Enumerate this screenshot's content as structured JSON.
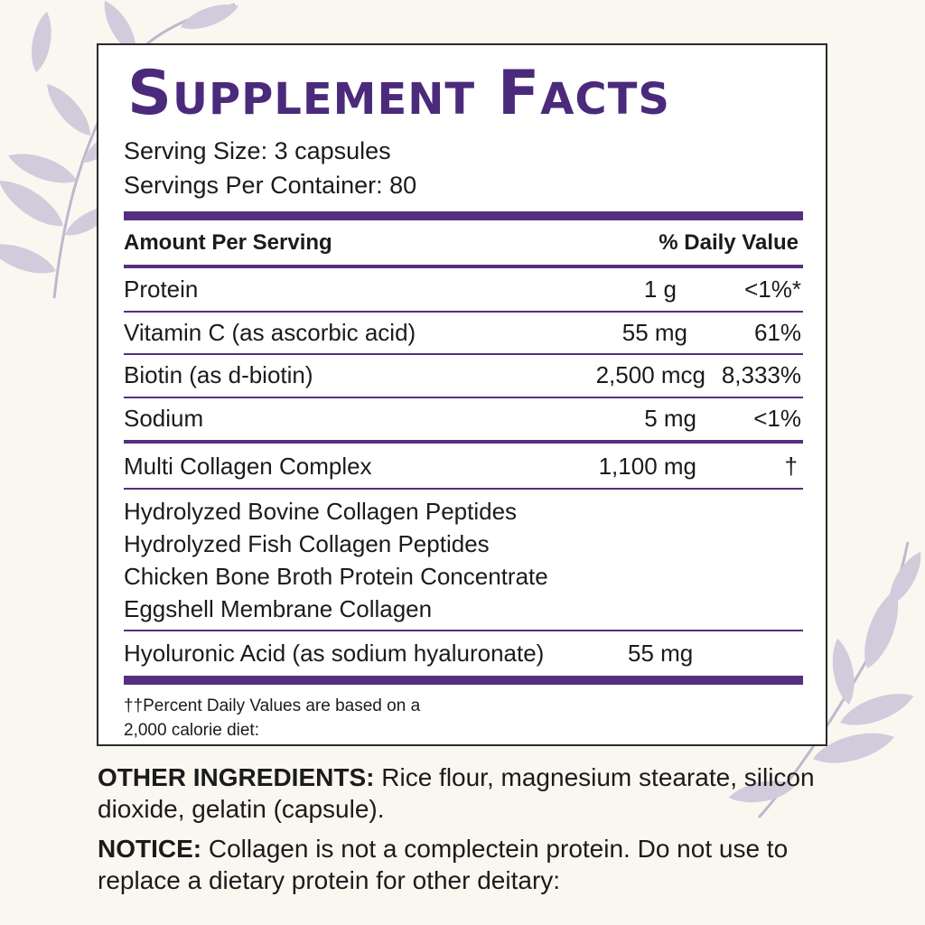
{
  "panel": {
    "title": "Supplement Facts",
    "serving_size": "Serving Size: 3 capsules",
    "servings_per_container": "Servings Per Container: 80",
    "header_amount": "Amount Per Serving",
    "header_dv": "% Daily Value",
    "nutrients": [
      {
        "name": "Protein",
        "amount": "1 g",
        "dv": "<1%*"
      },
      {
        "name": "Vitamin C (as ascorbic acid)",
        "amount": "55 mg",
        "dv": "61%"
      },
      {
        "name": "Biotin (as d-biotin)",
        "amount": "2,500 mcg",
        "dv": "8,333%"
      },
      {
        "name": "Sodium",
        "amount": "5 mg",
        "dv": "<1%"
      }
    ],
    "blend": {
      "name": "Multi Collagen Complex",
      "amount": "1,100 mg",
      "dv": "†"
    },
    "blend_items": [
      "Hydrolyzed Bovine Collagen Peptides",
      "Hydrolyzed Fish Collagen Peptides",
      "Chicken Bone Broth Protein Concentrate",
      "Eggshell Membrane Collagen"
    ],
    "extra": {
      "name": "Hyoluronic Acid (as sodium hyaluronate)",
      "amount": "55 mg"
    },
    "footnote_line1": "††Percent Daily Values are based on a",
    "footnote_line2": "2,000 calorie diet:"
  },
  "other_ingredients": {
    "label": "OTHER INGREDIENTS:",
    "text": " Rice flour, magnesium stearate, silicon dioxide, gelatin (capsule)."
  },
  "notice": {
    "label": "NOTICE:",
    "text": " Collagen is not a complectein protein. Do not use to replace a dietary protein for other deitary:"
  },
  "colors": {
    "accent": "#55307f",
    "title": "#4b2a7b",
    "leaf": "#c7c0d6",
    "background": "#faf7f1"
  },
  "decor": {
    "icon": "leaf-sprig-icon"
  }
}
